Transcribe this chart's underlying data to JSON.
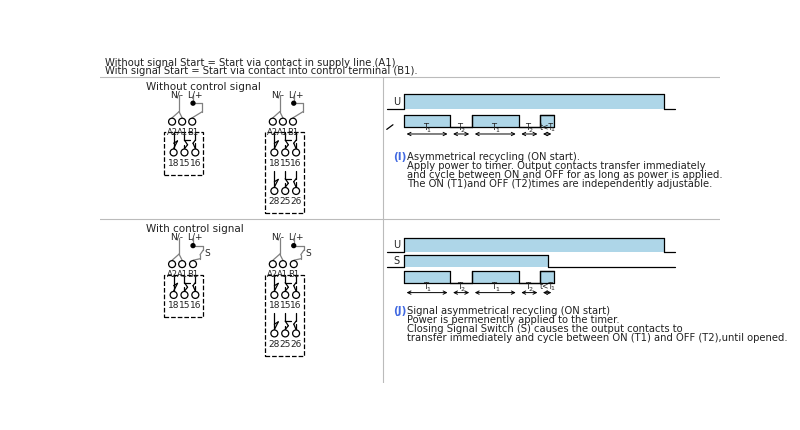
{
  "title_line1": "Without signal Start = Start via contact in supply line (A1).",
  "title_line2": "With signal Start = Start via contact into control terminal (B1).",
  "section1_title": "Without control signal",
  "section2_title": "With control signal",
  "label_I": "(I)",
  "label_J": "(J)",
  "text_I_line1": "Asymmetrical recycling (ON start).",
  "text_I_line2": "Apply power to timer. Output contacts transfer immediately",
  "text_I_line3": "and cycle between ON and OFF for as long as power is applied.",
  "text_I_line4": "The ON (T1)and OFF (T2)times are independently adjustable.",
  "text_J_line1": "Signal asymmetrical recycling (ON start)",
  "text_J_line2": "Power is permenently applied to the timer.",
  "text_J_line3": "Closing Signal Switch (S) causes the output contacts to",
  "text_J_line4": "transfer immediately and cycle between ON (T1) and OFF (T2),until opened.",
  "light_blue": "#AED6E8",
  "blue_label": "#4169E1",
  "bg_color": "#FFFFFF",
  "gray_line": "#BBBBBB",
  "dark": "#222222",
  "gray_wire": "#888888"
}
